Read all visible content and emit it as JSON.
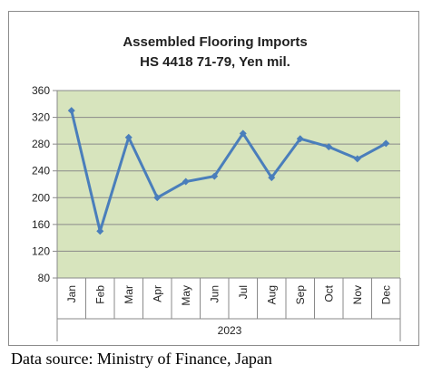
{
  "colors": {
    "plot_background": "#d7e4bd",
    "series": "#4a7ebb",
    "gridline": "#8a8a8a",
    "axis": "#8a8a8a"
  },
  "source_note": "Data source: Ministry of Finance, Japan",
  "chart_data": {
    "type": "line",
    "title": "Assembled Flooring Imports",
    "subtitle": "HS 4418 71-79, Yen mil.",
    "categories": [
      "Jan",
      "Feb",
      "Mar",
      "Apr",
      "May",
      "Jun",
      "Jul",
      "Aug",
      "Sep",
      "Oct",
      "Nov",
      "Dec"
    ],
    "category_group": "2023",
    "series": [
      {
        "values": [
          330,
          150,
          290,
          200,
          224,
          232,
          296,
          230,
          288,
          276,
          258,
          281
        ]
      }
    ],
    "ylim": [
      80,
      360
    ],
    "yticks": [
      80,
      120,
      160,
      200,
      240,
      280,
      320,
      360
    ],
    "grid": true,
    "legend": "none"
  }
}
